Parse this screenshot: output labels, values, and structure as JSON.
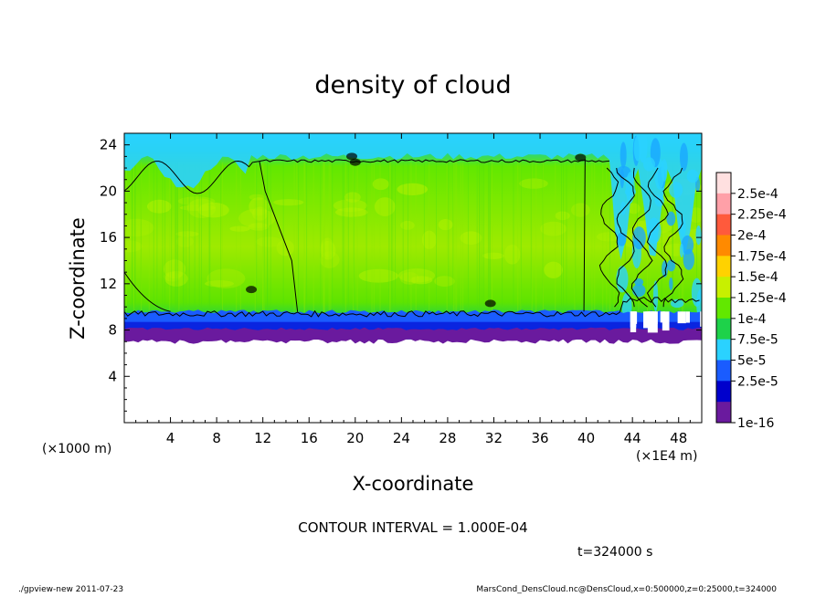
{
  "chart_data": {
    "type": "heatmap",
    "title": "density of cloud",
    "xlabel": "X-coordinate",
    "ylabel": "Z-coordinate",
    "x_unit": "(×1E4 m)",
    "y_unit": "(×1000 m)",
    "xlim": [
      0,
      50
    ],
    "ylim": [
      0,
      25
    ],
    "x_ticks": [
      4,
      8,
      12,
      16,
      20,
      24,
      28,
      32,
      36,
      40,
      44,
      48
    ],
    "y_ticks": [
      4,
      8,
      12,
      16,
      20,
      24
    ],
    "colorbar": {
      "labels": [
        "2.5e-4",
        "2.25e-4",
        "2e-4",
        "1.75e-4",
        "1.5e-4",
        "1.25e-4",
        "1e-4",
        "7.5e-5",
        "5e-5",
        "2.5e-5",
        "1e-16"
      ],
      "colors": [
        "#ffe0e0",
        "#ffa0a8",
        "#ff5a3c",
        "#ff8a00",
        "#ffd200",
        "#c8f000",
        "#62e800",
        "#1ed24a",
        "#2ad2ff",
        "#1a5cff",
        "#0000cc",
        "#6a1a9e"
      ]
    },
    "cloud_base_z": 7.2,
    "contour_interval": "CONTOUR INTERVAL = 1.000E-04",
    "time_label": "t=324000 s"
  },
  "footer": {
    "left": "./gpview-new   2011-07-23",
    "right": "MarsCond_DensCloud.nc@DensCloud,x=0:500000,z=0:25000,t=324000"
  },
  "colors": {
    "cyan_top": "#2ad2ff",
    "green_main": "#62e800",
    "green_light": "#aef000",
    "blue_band": "#1a5cff",
    "purple_base": "#6a1a9e"
  }
}
